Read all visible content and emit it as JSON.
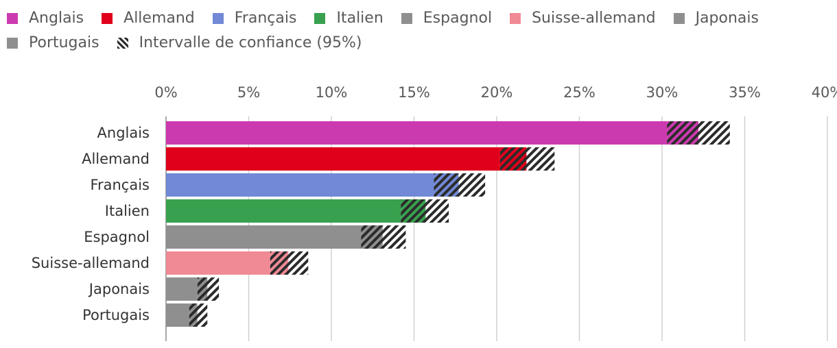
{
  "chart_data": {
    "type": "bar",
    "orientation": "horizontal",
    "categories": [
      "Anglais",
      "Allemand",
      "Français",
      "Italien",
      "Espagnol",
      "Suisse-allemand",
      "Japonais",
      "Portugais"
    ],
    "values": [
      32.2,
      21.8,
      17.7,
      15.7,
      13.1,
      7.4,
      2.5,
      1.9
    ],
    "ci_low": [
      30.3,
      20.2,
      16.2,
      14.2,
      11.8,
      6.3,
      1.9,
      1.4
    ],
    "ci_high": [
      34.1,
      23.5,
      19.3,
      17.1,
      14.5,
      8.6,
      3.2,
      2.5
    ],
    "colors": [
      "#CC3AAF",
      "#E0001B",
      "#7189D6",
      "#38A14F",
      "#8F8F8F",
      "#F08A94",
      "#8F8F8F",
      "#8F8F8F"
    ],
    "xlim": [
      0,
      40
    ],
    "xticks": [
      "0%",
      "5%",
      "10%",
      "15%",
      "20%",
      "25%",
      "30%",
      "35%",
      "40%"
    ],
    "xtick_values": [
      0,
      5,
      10,
      15,
      20,
      25,
      30,
      35,
      40
    ],
    "legend": [
      {
        "label": "Anglais",
        "color": "#CC3AAF"
      },
      {
        "label": "Allemand",
        "color": "#E0001B"
      },
      {
        "label": "Français",
        "color": "#7189D6"
      },
      {
        "label": "Italien",
        "color": "#38A14F"
      },
      {
        "label": "Espagnol",
        "color": "#8F8F8F"
      },
      {
        "label": "Suisse-allemand",
        "color": "#F08A94"
      },
      {
        "label": "Japonais",
        "color": "#8F8F8F"
      },
      {
        "label": "Portugais",
        "color": "#8F8F8F"
      },
      {
        "label": "Intervalle de confiance (95%)",
        "color": "hatch"
      }
    ],
    "grid": true,
    "legend_position": "top"
  }
}
